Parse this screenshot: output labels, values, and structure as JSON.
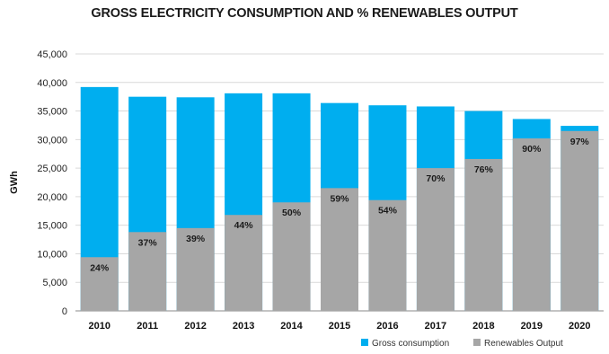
{
  "chart_data": {
    "type": "bar",
    "title": "GROSS ELECTRICITY CONSUMPTION AND % RENEWABLES OUTPUT",
    "ylabel": "GWh",
    "xlabel": "",
    "ylim": [
      0,
      45000
    ],
    "yticks": [
      0,
      5000,
      10000,
      15000,
      20000,
      25000,
      30000,
      35000,
      40000,
      45000
    ],
    "ytick_labels": [
      "0",
      "5,000",
      "10,000",
      "15,000",
      "20,000",
      "25,000",
      "30,000",
      "35,000",
      "40,000",
      "45,000"
    ],
    "grid": true,
    "legend_position": "bottom-right",
    "categories": [
      "2010",
      "2011",
      "2012",
      "2013",
      "2014",
      "2015",
      "2016",
      "2017",
      "2018",
      "2019",
      "2020"
    ],
    "series": [
      {
        "name": "Gross consumption",
        "color": "#00aeef",
        "values": [
          39200,
          37500,
          37400,
          38100,
          38100,
          36400,
          36000,
          35800,
          35000,
          33600,
          32400
        ]
      },
      {
        "name": "Renewables Output",
        "color": "#a6a6a6",
        "values": [
          9400,
          13800,
          14500,
          16800,
          19000,
          21500,
          19400,
          25000,
          26600,
          30200,
          31500
        ],
        "labels": [
          "24%",
          "37%",
          "39%",
          "44%",
          "50%",
          "59%",
          "54%",
          "70%",
          "76%",
          "90%",
          "97%"
        ]
      }
    ]
  }
}
